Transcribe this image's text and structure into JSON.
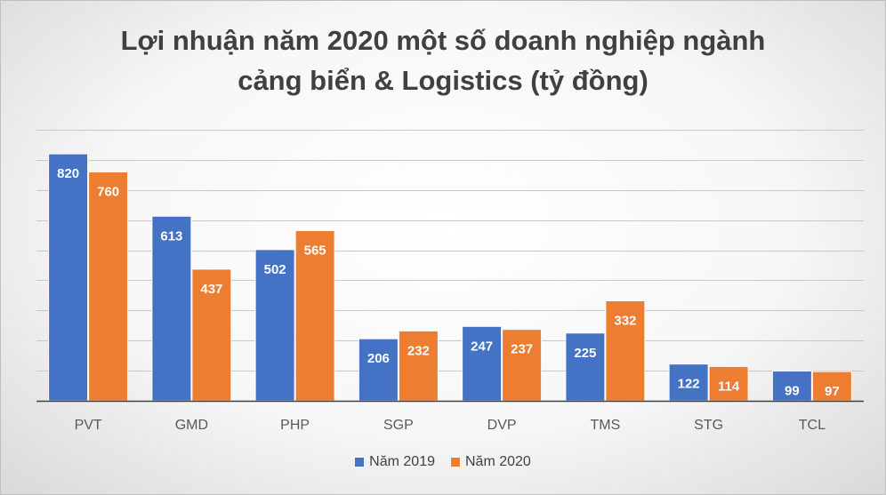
{
  "chart_data": {
    "type": "bar",
    "title_line1": "Lợi nhuận năm 2020 một số doanh nghiệp ngành",
    "title_line2": "cảng biển & Logistics (tỷ đồng)",
    "categories": [
      "PVT",
      "GMD",
      "PHP",
      "SGP",
      "DVP",
      "TMS",
      "STG",
      "TCL"
    ],
    "series": [
      {
        "name": "Năm 2019",
        "color": "#4472c4",
        "values": [
          820,
          613,
          502,
          206,
          247,
          225,
          122,
          99
        ]
      },
      {
        "name": "Năm 2020",
        "color": "#ed7d31",
        "values": [
          760,
          437,
          565,
          232,
          237,
          332,
          114,
          97
        ]
      }
    ],
    "ylim": [
      0,
      900
    ],
    "grid": true,
    "legend": "bottom",
    "xlabel": "",
    "ylabel": ""
  }
}
